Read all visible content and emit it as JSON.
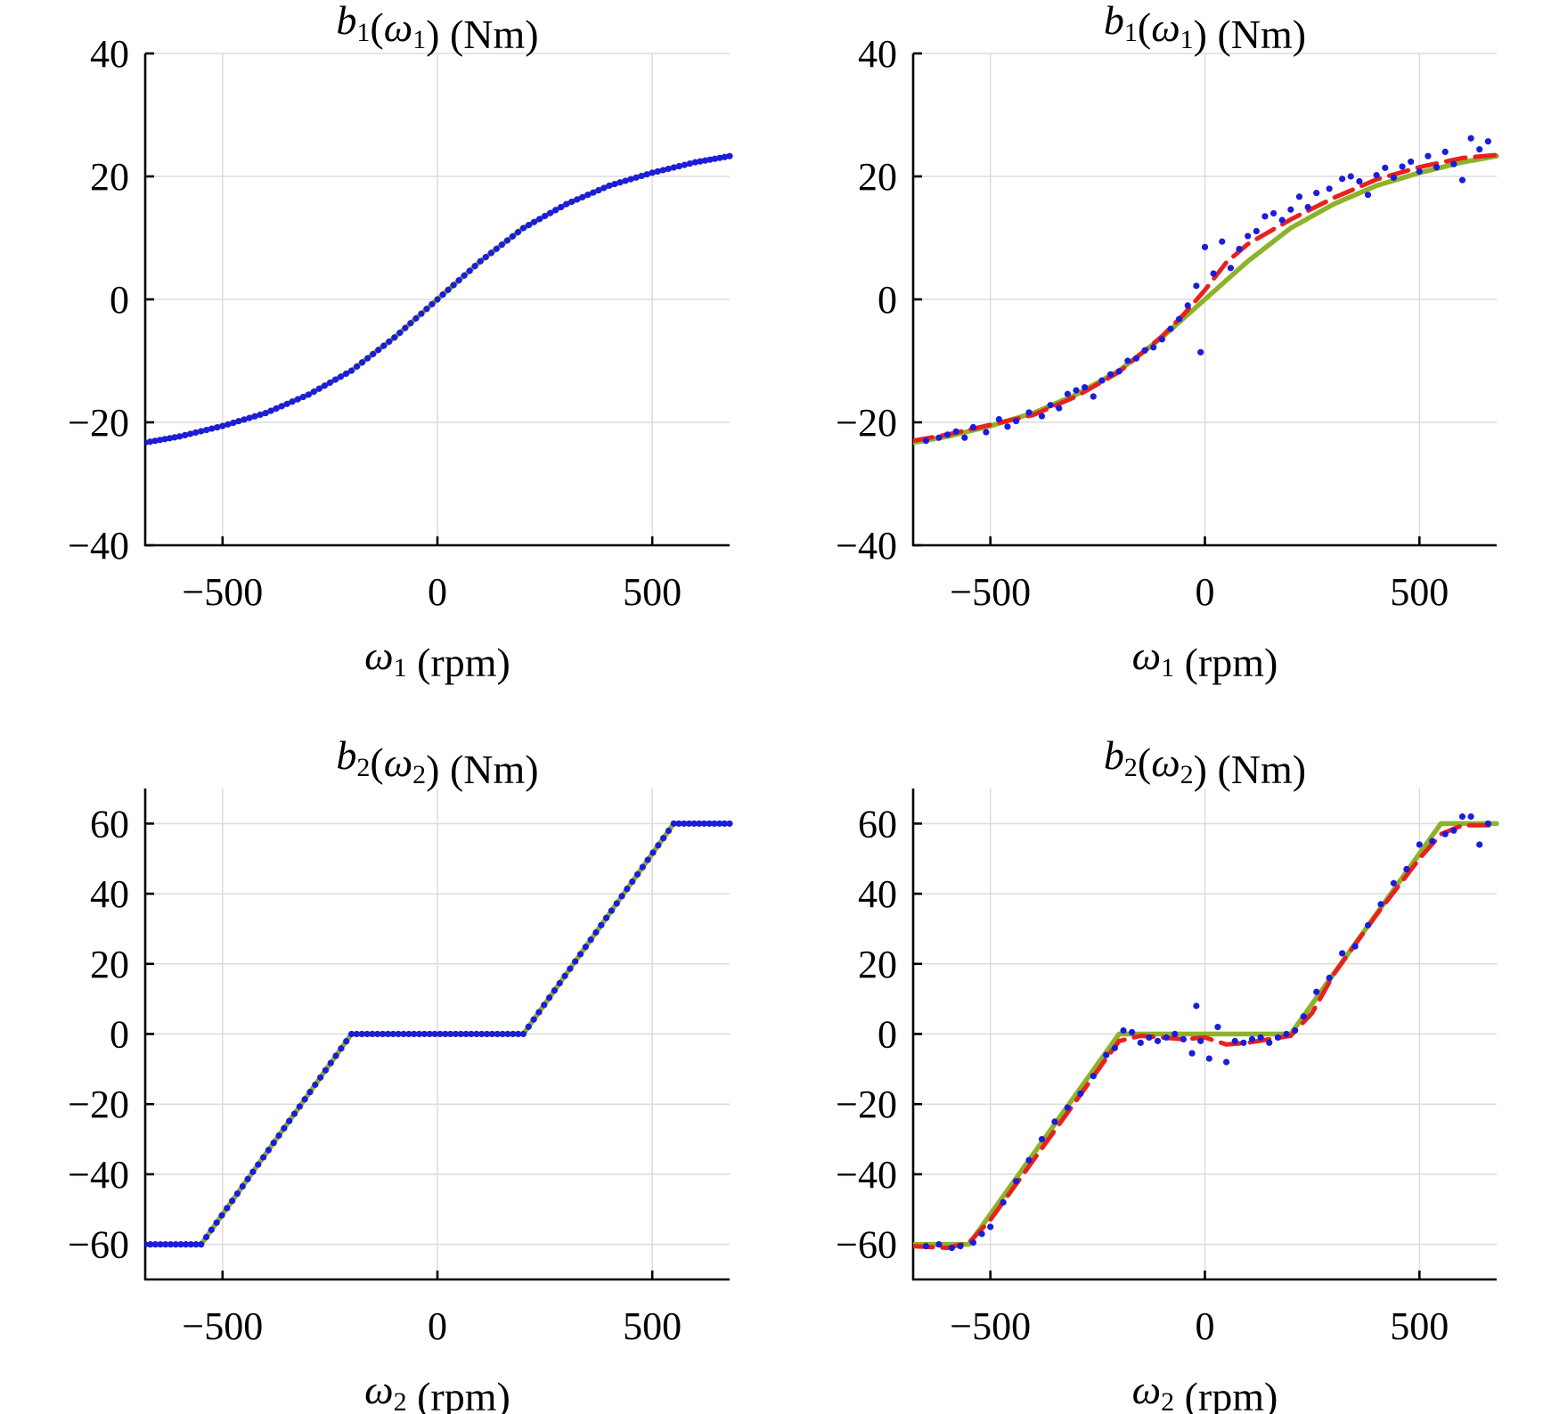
{
  "chart_data": [
    {
      "id": "b1-exact",
      "type": "line",
      "title": "b1(ω1) (Nm)",
      "xlabel": "ω1 (rpm)",
      "xlim": [
        -680,
        680
      ],
      "ylim": [
        -40,
        40
      ],
      "xticks": [
        -500,
        0,
        500
      ],
      "yticks": [
        -40,
        -20,
        0,
        20,
        40
      ],
      "xtick_labels": [
        "−500",
        "0",
        "500"
      ],
      "ytick_labels": [
        "−40",
        "−20",
        "0",
        "20",
        "40"
      ],
      "grid": true,
      "series": [
        {
          "style": "solid",
          "color": "#8db32a",
          "x": [
            -680,
            -600,
            -500,
            -400,
            -300,
            -200,
            -100,
            0,
            100,
            200,
            300,
            400,
            500,
            600,
            680
          ],
          "y": [
            -23.3,
            -22.3,
            -20.6,
            -18.5,
            -15.5,
            -11.6,
            -6.2,
            0,
            6.2,
            11.6,
            15.5,
            18.5,
            20.6,
            22.3,
            23.3
          ]
        },
        {
          "style": "dots",
          "color": "#1c1cdc",
          "x": [
            -680,
            -600,
            -500,
            -400,
            -300,
            -200,
            -100,
            0,
            100,
            200,
            300,
            400,
            500,
            600,
            680
          ],
          "y": [
            -23.3,
            -22.3,
            -20.6,
            -18.5,
            -15.5,
            -11.6,
            -6.2,
            0,
            6.2,
            11.6,
            15.5,
            18.5,
            20.6,
            22.3,
            23.3
          ]
        }
      ]
    },
    {
      "id": "b1-noisy",
      "type": "line",
      "title": "b1(ω1) (Nm)",
      "xlabel": "ω1 (rpm)",
      "xlim": [
        -680,
        680
      ],
      "ylim": [
        -40,
        40
      ],
      "xticks": [
        -500,
        0,
        500
      ],
      "yticks": [
        -40,
        -20,
        0,
        20,
        40
      ],
      "xtick_labels": [
        "−500",
        "0",
        "500"
      ],
      "ytick_labels": [
        "−40",
        "−20",
        "0",
        "20",
        "40"
      ],
      "grid": true,
      "series": [
        {
          "style": "solid",
          "color": "#8db32a",
          "x": [
            -680,
            -600,
            -500,
            -400,
            -300,
            -200,
            -100,
            0,
            100,
            200,
            300,
            400,
            500,
            600,
            680
          ],
          "y": [
            -23.3,
            -22.3,
            -20.6,
            -18.5,
            -15.5,
            -11.6,
            -6.2,
            0,
            6.2,
            11.6,
            15.5,
            18.5,
            20.6,
            22.3,
            23.3
          ]
        },
        {
          "style": "dashed",
          "color": "#e8211e",
          "x": [
            -680,
            -600,
            -500,
            -400,
            -300,
            -200,
            -100,
            -50,
            0,
            50,
            100,
            200,
            300,
            400,
            500,
            600,
            680
          ],
          "y": [
            -23.0,
            -22.0,
            -20.4,
            -18.8,
            -15.8,
            -11.8,
            -6.0,
            -2.5,
            1.5,
            6.0,
            9.0,
            13.0,
            16.5,
            19.5,
            21.5,
            23.0,
            23.5
          ]
        },
        {
          "style": "dots",
          "color": "#1c1cdc",
          "x": [
            -650,
            -620,
            -600,
            -580,
            -560,
            -540,
            -510,
            -480,
            -460,
            -440,
            -410,
            -380,
            -360,
            -340,
            -320,
            -300,
            -280,
            -260,
            -240,
            -220,
            -200,
            -180,
            -160,
            -140,
            -120,
            -100,
            -80,
            -60,
            -40,
            -20,
            -10,
            0,
            20,
            40,
            60,
            80,
            100,
            120,
            140,
            160,
            180,
            200,
            220,
            240,
            260,
            290,
            320,
            340,
            360,
            380,
            400,
            420,
            440,
            460,
            480,
            500,
            520,
            540,
            560,
            580,
            600,
            620,
            640,
            660
          ],
          "y": [
            -23.0,
            -22.5,
            -22.0,
            -21.5,
            -22.5,
            -20.8,
            -21.6,
            -19.5,
            -20.7,
            -19.8,
            -18.4,
            -19.0,
            -17.2,
            -17.7,
            -15.4,
            -14.8,
            -14.3,
            -15.8,
            -13.2,
            -12.2,
            -11.7,
            -10.0,
            -9.6,
            -8.3,
            -7.8,
            -6.5,
            -4.8,
            -3.2,
            -1.0,
            2.2,
            -8.6,
            8.5,
            4.2,
            9.4,
            5.1,
            8.2,
            10.3,
            11.1,
            13.5,
            14.0,
            12.9,
            14.6,
            16.7,
            15.0,
            17.3,
            18.0,
            19.6,
            20.0,
            19.2,
            17.0,
            20.2,
            21.4,
            19.8,
            21.6,
            22.4,
            20.8,
            23.3,
            21.5,
            24.0,
            22.0,
            19.4,
            26.2,
            24.4,
            25.7
          ]
        }
      ]
    },
    {
      "id": "b2-exact",
      "type": "line",
      "title": "b2(ω2) (Nm)",
      "xlabel": "ω2 (rpm)",
      "xlim": [
        -680,
        680
      ],
      "ylim": [
        -70,
        70
      ],
      "xticks": [
        -500,
        0,
        500
      ],
      "yticks": [
        -60,
        -40,
        -20,
        0,
        20,
        40,
        60
      ],
      "xtick_labels": [
        "−500",
        "0",
        "500"
      ],
      "ytick_labels": [
        "−60",
        "−40",
        "−20",
        "0",
        "20",
        "40",
        "60"
      ],
      "grid": true,
      "series": [
        {
          "style": "solid",
          "color": "#8db32a",
          "x": [
            -680,
            -550,
            -200,
            200,
            550,
            680
          ],
          "y": [
            -60,
            -60,
            0,
            0,
            60,
            60
          ]
        },
        {
          "style": "dots",
          "color": "#1c1cdc",
          "x": [
            -680,
            -550,
            -200,
            200,
            550,
            680
          ],
          "y": [
            -60,
            -60,
            0,
            0,
            60,
            60
          ]
        }
      ]
    },
    {
      "id": "b2-noisy",
      "type": "line",
      "title": "b2(ω2) (Nm)",
      "xlabel": "ω2 (rpm)",
      "xlim": [
        -680,
        680
      ],
      "ylim": [
        -70,
        70
      ],
      "xticks": [
        -500,
        0,
        500
      ],
      "yticks": [
        -60,
        -40,
        -20,
        0,
        20,
        40,
        60
      ],
      "xtick_labels": [
        "−500",
        "0",
        "500"
      ],
      "ytick_labels": [
        "−60",
        "−40",
        "−20",
        "0",
        "20",
        "40",
        "60"
      ],
      "grid": true,
      "series": [
        {
          "style": "solid",
          "color": "#8db32a",
          "x": [
            -680,
            -550,
            -200,
            200,
            550,
            680
          ],
          "y": [
            -60,
            -60,
            0,
            0,
            60,
            60
          ]
        },
        {
          "style": "dashed",
          "color": "#e8211e",
          "x": [
            -680,
            -600,
            -550,
            -500,
            -400,
            -300,
            -230,
            -200,
            -150,
            -100,
            -50,
            0,
            50,
            100,
            150,
            200,
            250,
            300,
            400,
            500,
            550,
            600,
            680
          ],
          "y": [
            -60.5,
            -61,
            -59.5,
            -53,
            -36,
            -19,
            -7,
            -2,
            -0.5,
            -1,
            -1.5,
            -1,
            -3,
            -2.5,
            -1.5,
            -0.5,
            6,
            17,
            34,
            50,
            57,
            59.5,
            59.5
          ]
        },
        {
          "style": "dots",
          "color": "#1c1cdc",
          "x": [
            -650,
            -620,
            -590,
            -570,
            -540,
            -520,
            -500,
            -470,
            -440,
            -410,
            -380,
            -350,
            -320,
            -290,
            -260,
            -230,
            -210,
            -190,
            -170,
            -150,
            -130,
            -110,
            -90,
            -70,
            -50,
            -30,
            -20,
            -10,
            10,
            30,
            50,
            70,
            90,
            110,
            130,
            150,
            170,
            190,
            210,
            230,
            260,
            290,
            320,
            350,
            380,
            410,
            440,
            470,
            500,
            530,
            560,
            580,
            600,
            620,
            640,
            660
          ],
          "y": [
            -60.5,
            -60,
            -61,
            -60.5,
            -59.5,
            -57,
            -55,
            -48,
            -42,
            -36,
            -30,
            -25,
            -21,
            -17,
            -12,
            -6,
            -4,
            1,
            0.5,
            -2.5,
            -1,
            -2,
            -1,
            0,
            -1.5,
            -5.5,
            8,
            -2,
            -7,
            2,
            -8,
            -2,
            -2.5,
            -1.5,
            -1,
            -2.5,
            -1,
            0,
            1,
            5,
            12,
            16,
            23,
            25,
            31,
            37,
            43,
            47,
            54,
            55,
            57,
            58,
            62,
            62,
            54,
            60
          ]
        }
      ]
    }
  ]
}
